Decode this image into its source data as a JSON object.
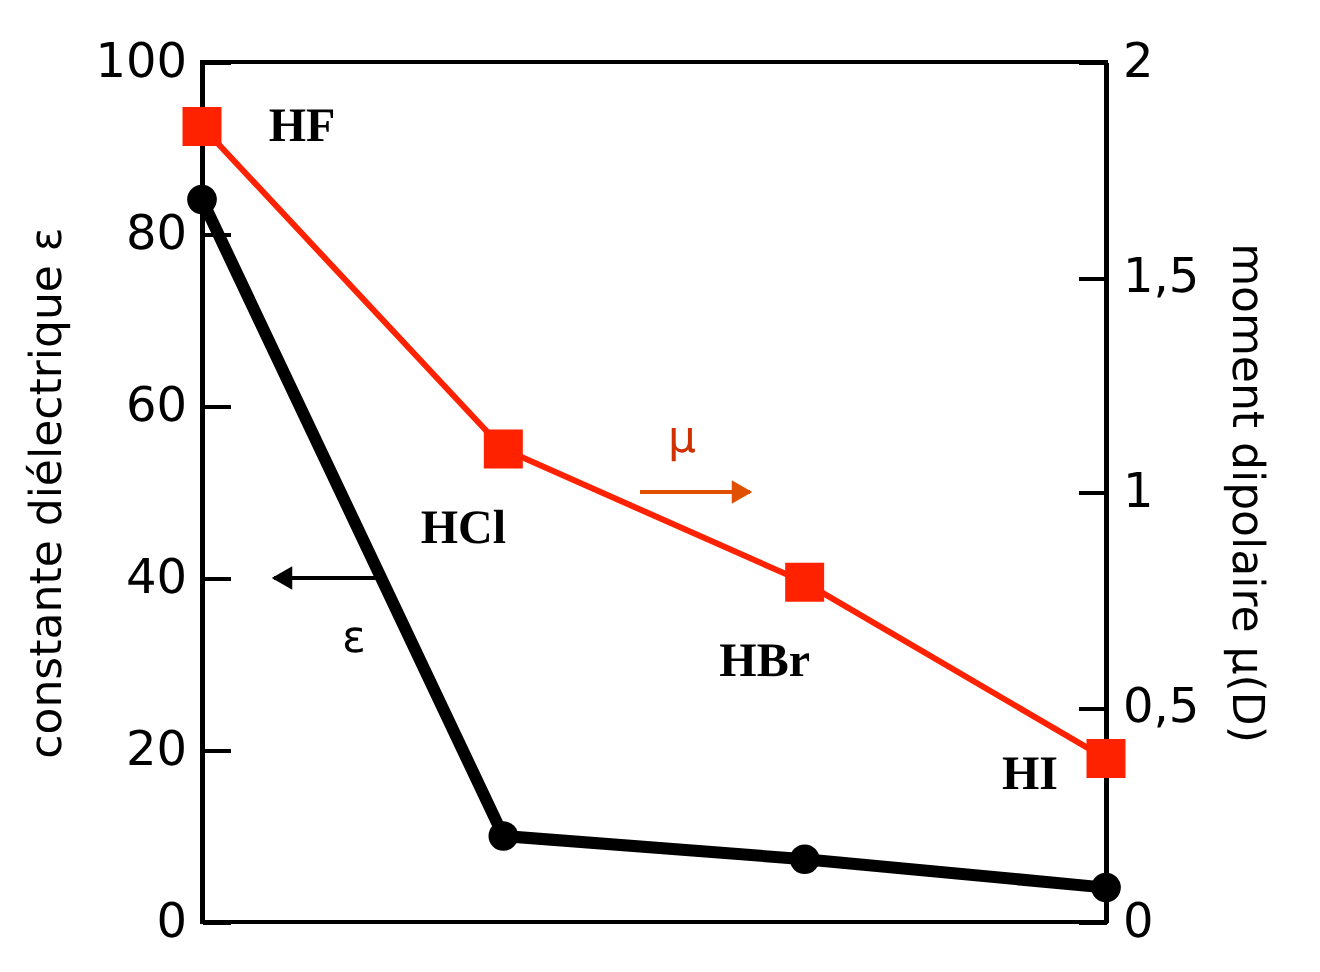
{
  "chart_data": {
    "type": "line",
    "categories": [
      null,
      null,
      null,
      null
    ],
    "ylabel": "constante diélectrique ε",
    "y2label": "moment dipolaire μ(D)",
    "ylim": [
      0,
      100
    ],
    "yticks": [
      0,
      20,
      40,
      60,
      80,
      100
    ],
    "y2lim": [
      0,
      2
    ],
    "y2ticks": [
      0,
      {
        "value": 0.5,
        "label": "0,5"
      },
      1,
      {
        "value": 1.5,
        "label": "1,5"
      },
      2
    ],
    "grid": false,
    "series": [
      {
        "color": "#000000",
        "values": [
          84,
          10,
          7.3,
          4
        ],
        "marker": "circle"
      },
      {
        "color": "#ff2200",
        "values": [
          1.85,
          1.1,
          0.79,
          0.38
        ],
        "axis": "y2",
        "marker": "square"
      }
    ],
    "annotations": [
      "HF",
      "HCl",
      "HBr",
      "HI",
      "ε",
      "μ"
    ]
  }
}
